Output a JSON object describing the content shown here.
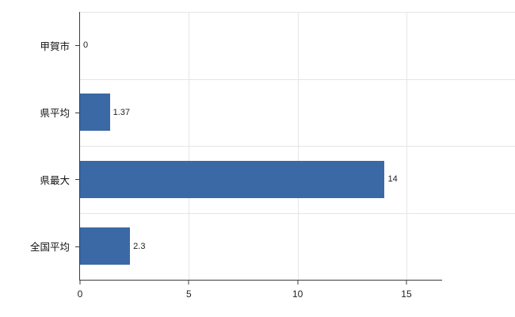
{
  "chart_data": {
    "type": "bar",
    "orientation": "horizontal",
    "title": "",
    "xlabel": "",
    "ylabel": "",
    "categories": [
      "甲賀市",
      "県平均",
      "県最大",
      "全国平均"
    ],
    "values": [
      0,
      1.37,
      14,
      2.3
    ],
    "value_labels": [
      "0",
      "1.37",
      "14",
      "2.3"
    ],
    "xlim": [
      0,
      16.64
    ],
    "xticks": [
      0,
      5,
      10,
      15
    ],
    "grid": true,
    "legend": false,
    "colors": {
      "bar": "#3b69a5",
      "axis": "#3c3c3c",
      "gridline": "#e5e5e5",
      "background": "#ffffff",
      "text": "#222222"
    }
  }
}
